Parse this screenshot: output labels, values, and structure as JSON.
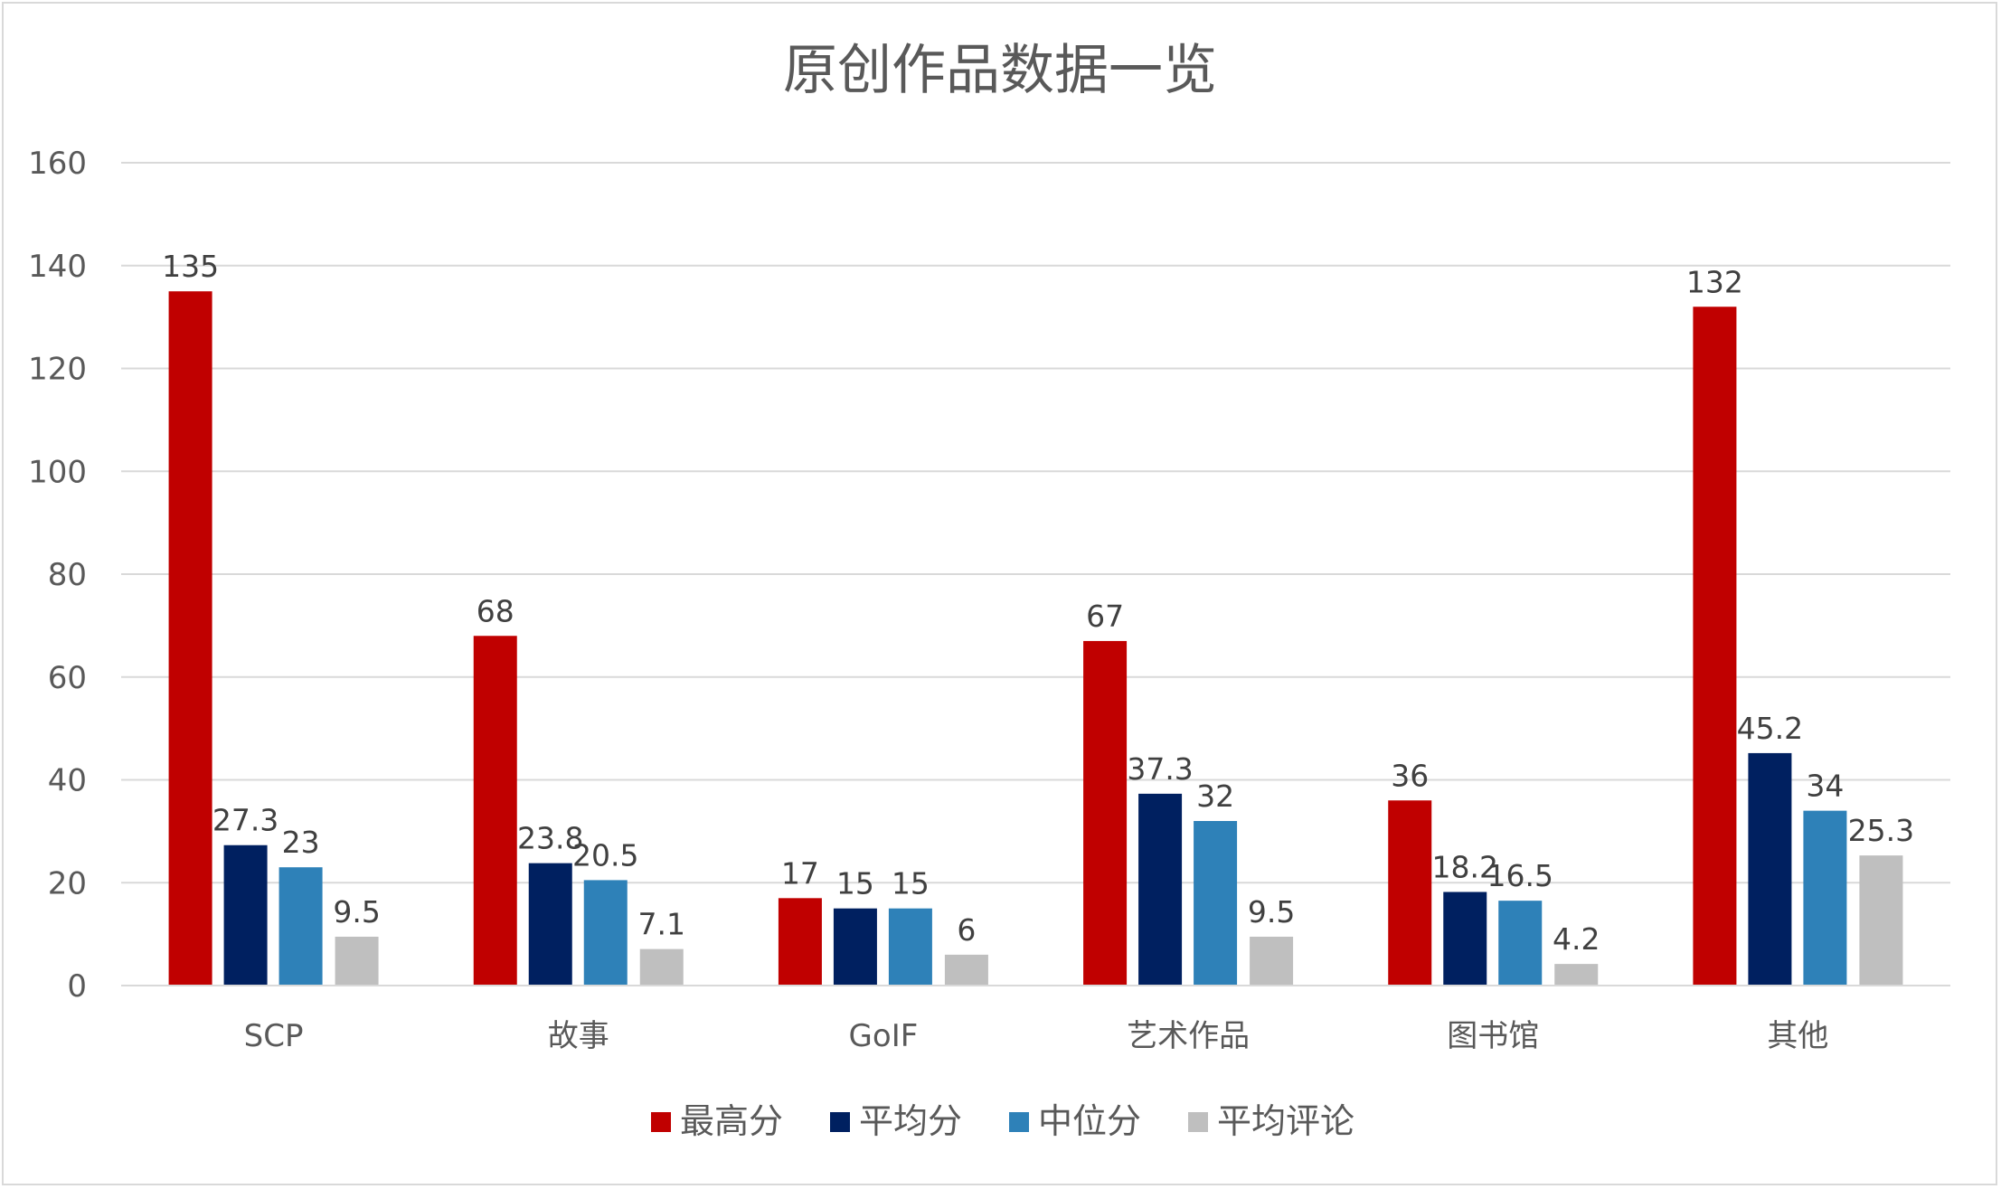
{
  "chart_data": {
    "type": "bar",
    "title": "原创作品数据一览",
    "xlabel": "",
    "ylabel": "",
    "ylim": [
      0,
      160
    ],
    "yticks": [
      0,
      20,
      40,
      60,
      80,
      100,
      120,
      140,
      160
    ],
    "grid": true,
    "legend_position": "bottom",
    "categories": [
      "SCP",
      "故事",
      "GoIF",
      "艺术作品",
      "图书馆",
      "其他"
    ],
    "series": [
      {
        "name": "最高分",
        "color": "#C00000",
        "values": [
          135,
          68,
          17,
          67,
          36,
          132
        ]
      },
      {
        "name": "平均分",
        "color": "#002060",
        "values": [
          27.3,
          23.8,
          15,
          37.3,
          18.2,
          45.2
        ]
      },
      {
        "name": "中位分",
        "color": "#2E81B8",
        "values": [
          23,
          20.5,
          15,
          32,
          16.5,
          34
        ]
      },
      {
        "name": "平均评论",
        "color": "#BFBFBF",
        "values": [
          9.5,
          7.1,
          6,
          9.5,
          4.2,
          25.3
        ]
      }
    ]
  }
}
